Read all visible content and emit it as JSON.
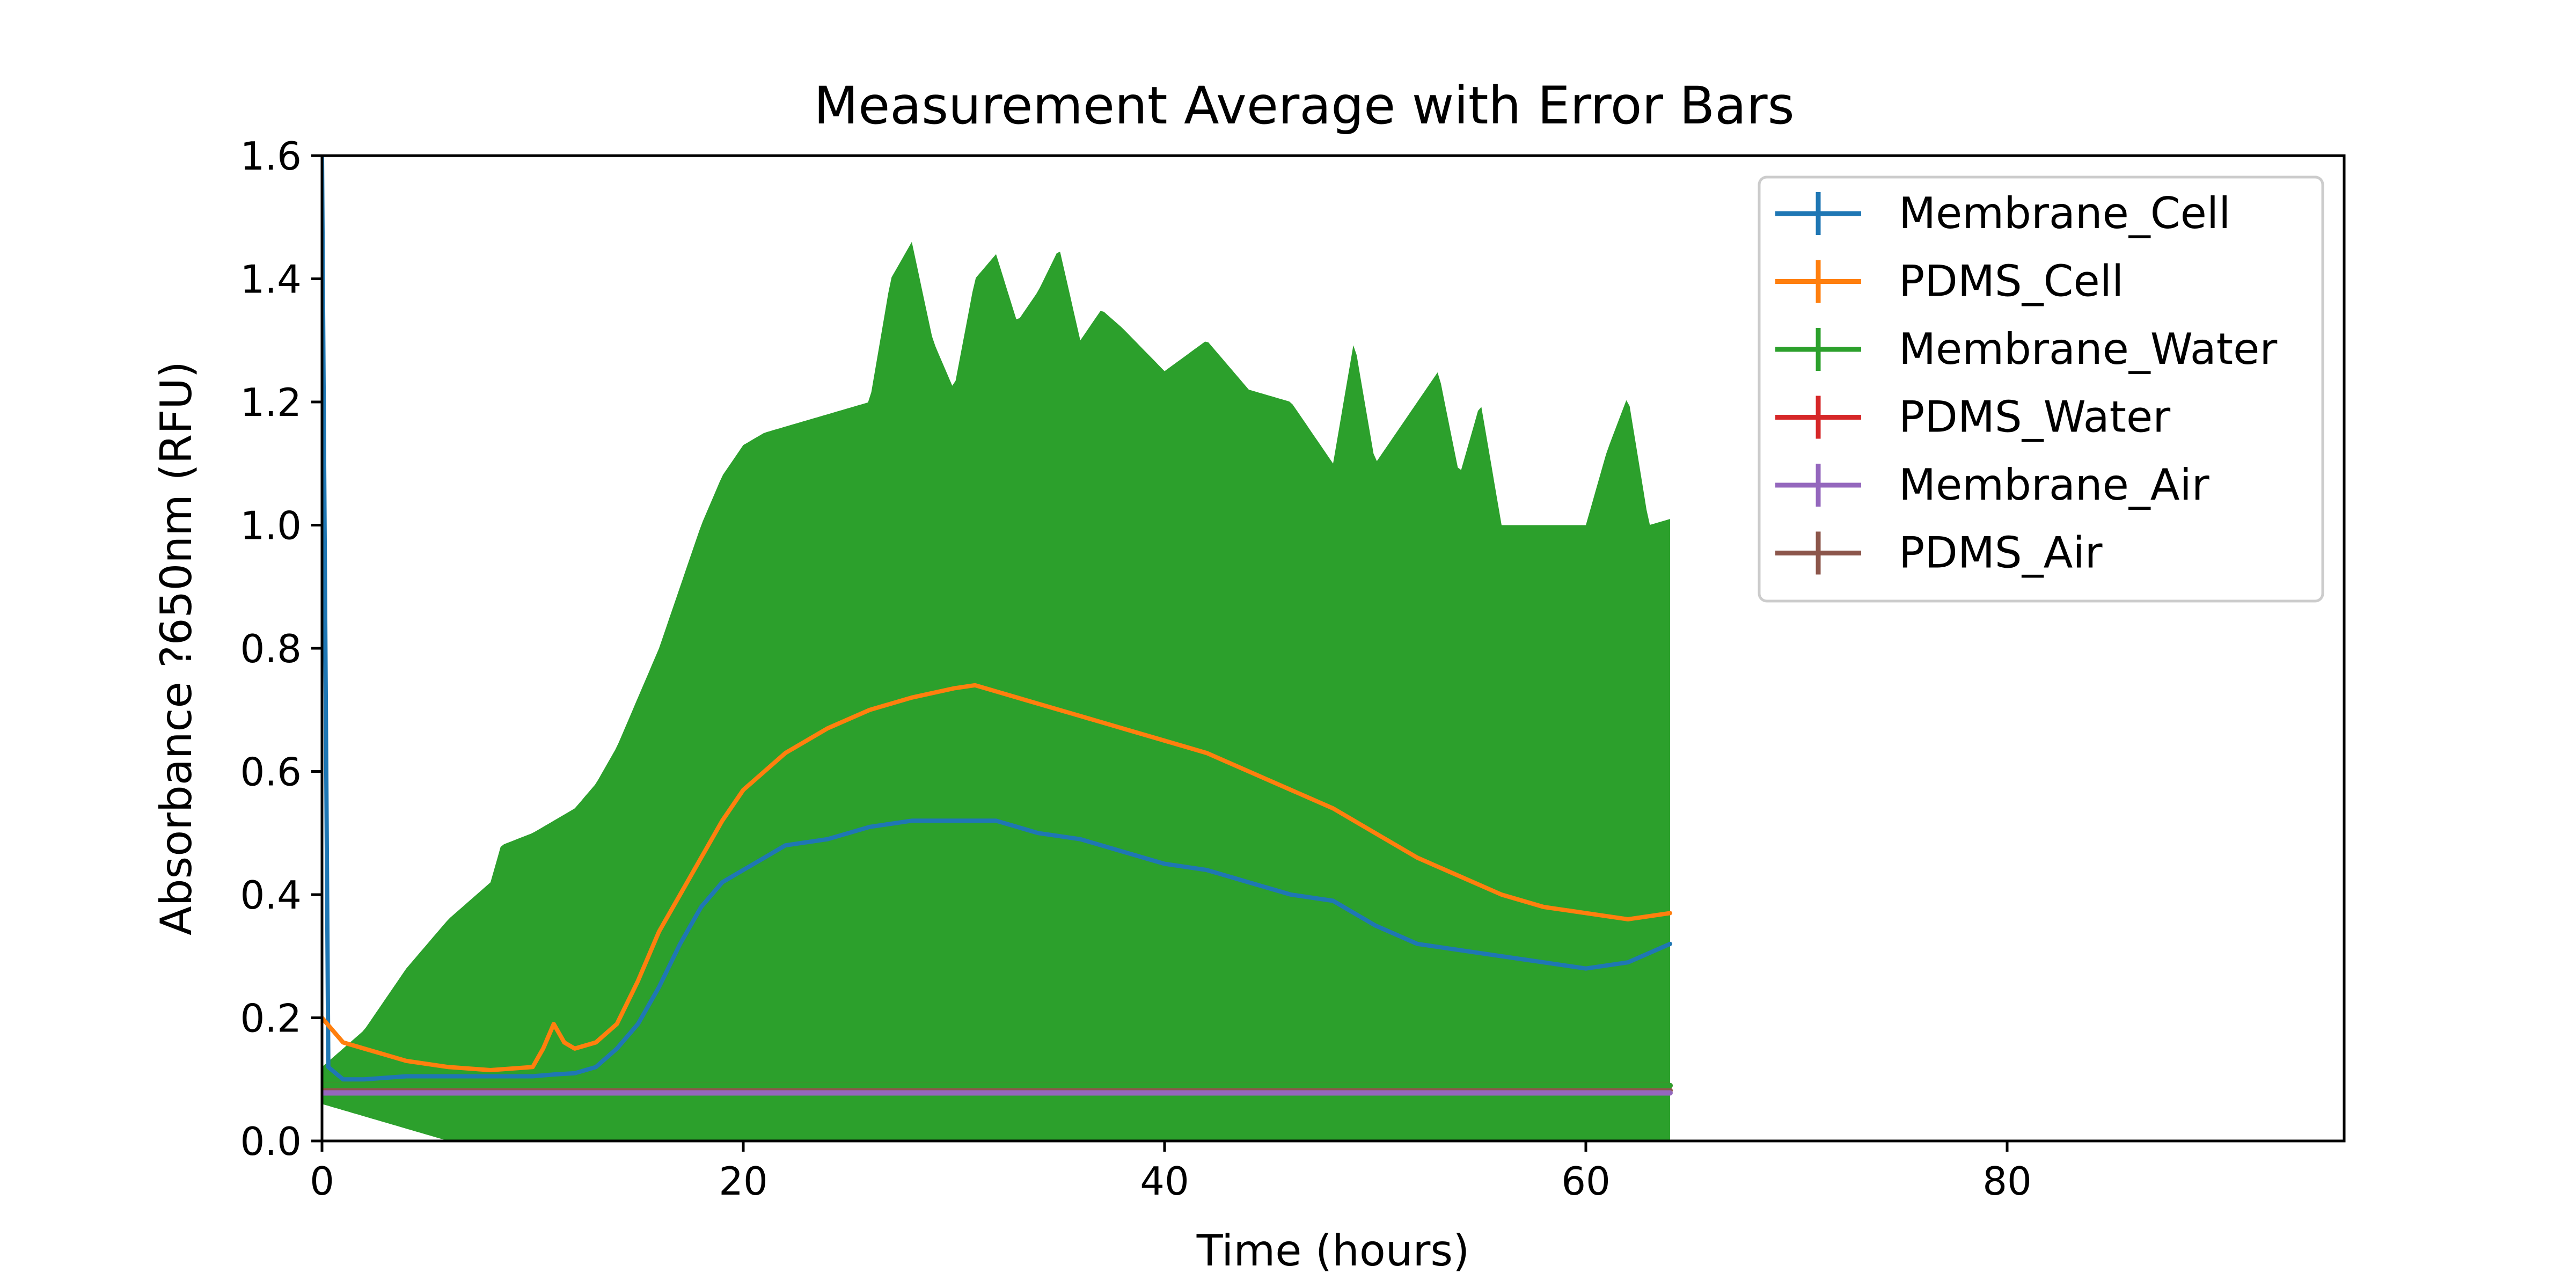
{
  "chart_data": {
    "type": "line",
    "title": "Measurement Average with Error Bars",
    "xlabel": "Time (hours)",
    "ylabel": "Absorbance ?650nm (RFU)",
    "xlim": [
      0,
      96
    ],
    "ylim": [
      0,
      1.6
    ],
    "x_ticks": [
      "0",
      "20",
      "40",
      "60",
      "80"
    ],
    "y_ticks": [
      "0.0",
      "0.2",
      "0.4",
      "0.6",
      "0.8",
      "1.0",
      "1.2",
      "1.4",
      "1.6"
    ],
    "legend_position": "top-right",
    "grid": false,
    "error_bars": true,
    "series": [
      {
        "name": "Membrane_Cell",
        "color": "#1f77b4",
        "x": [
          0,
          0.3,
          1,
          2,
          4,
          6,
          8,
          10,
          11,
          12,
          13,
          14,
          15,
          16,
          17,
          18,
          19,
          20,
          21,
          22,
          24,
          26,
          28,
          30,
          32,
          34,
          36,
          38,
          40,
          42,
          44,
          46,
          48,
          50,
          52,
          54,
          56,
          58,
          60,
          62,
          64
        ],
        "y": [
          1.6,
          0.12,
          0.1,
          0.1,
          0.105,
          0.105,
          0.105,
          0.105,
          0.108,
          0.11,
          0.12,
          0.15,
          0.19,
          0.25,
          0.32,
          0.38,
          0.42,
          0.44,
          0.46,
          0.48,
          0.49,
          0.51,
          0.52,
          0.52,
          0.52,
          0.5,
          0.49,
          0.47,
          0.45,
          0.44,
          0.42,
          0.4,
          0.39,
          0.35,
          0.32,
          0.31,
          0.3,
          0.29,
          0.28,
          0.29,
          0.32
        ]
      },
      {
        "name": "PDMS_Cell",
        "color": "#ff7f0e",
        "x": [
          0,
          0.5,
          1,
          2,
          3,
          4,
          6,
          8,
          10,
          10.5,
          11,
          11.5,
          12,
          13,
          14,
          15,
          16,
          17,
          18,
          19,
          20,
          22,
          24,
          26,
          28,
          30,
          31,
          32,
          34,
          36,
          38,
          40,
          42,
          44,
          46,
          48,
          50,
          52,
          54,
          56,
          58,
          60,
          62,
          64
        ],
        "y": [
          0.2,
          0.18,
          0.16,
          0.15,
          0.14,
          0.13,
          0.12,
          0.115,
          0.12,
          0.15,
          0.19,
          0.16,
          0.15,
          0.16,
          0.19,
          0.26,
          0.34,
          0.4,
          0.46,
          0.52,
          0.57,
          0.63,
          0.67,
          0.7,
          0.72,
          0.735,
          0.74,
          0.73,
          0.71,
          0.69,
          0.67,
          0.65,
          0.63,
          0.6,
          0.57,
          0.54,
          0.5,
          0.46,
          0.43,
          0.4,
          0.38,
          0.37,
          0.36,
          0.37
        ]
      },
      {
        "name": "Membrane_Water",
        "color": "#2ca02c",
        "x": [
          0,
          64
        ],
        "y": [
          0.09,
          0.09
        ],
        "error_upper_envelope": {
          "x": [
            0,
            2,
            4,
            6,
            8,
            8.5,
            10,
            12,
            13,
            14,
            15,
            16,
            17,
            18,
            19,
            20,
            21,
            22,
            24,
            26,
            27,
            28,
            29,
            30,
            31,
            32,
            33,
            34,
            35,
            36,
            37,
            38,
            40,
            42,
            44,
            46,
            48,
            49,
            50,
            52,
            53,
            54,
            55,
            56,
            58,
            60,
            61,
            62,
            63,
            64
          ],
          "y": [
            0.12,
            0.18,
            0.28,
            0.36,
            0.42,
            0.48,
            0.5,
            0.54,
            0.58,
            0.64,
            0.72,
            0.8,
            0.9,
            1.0,
            1.08,
            1.13,
            1.15,
            1.16,
            1.18,
            1.2,
            1.4,
            1.46,
            1.3,
            1.22,
            1.4,
            1.44,
            1.33,
            1.38,
            1.45,
            1.3,
            1.35,
            1.32,
            1.25,
            1.3,
            1.22,
            1.2,
            1.1,
            1.3,
            1.1,
            1.2,
            1.25,
            1.08,
            1.2,
            1.0,
            1.0,
            1.0,
            1.12,
            1.21,
            1.0,
            1.01
          ]
        },
        "error_lower_envelope": {
          "x": [
            0,
            2,
            4,
            6,
            64
          ],
          "y": [
            0.06,
            0.04,
            0.02,
            0.0,
            0.0
          ]
        }
      },
      {
        "name": "PDMS_Water",
        "color": "#d62728",
        "x": [
          0,
          64
        ],
        "y": [
          0.09,
          0.09
        ]
      },
      {
        "name": "Membrane_Air",
        "color": "#9467bd",
        "x": [
          0,
          64
        ],
        "y": [
          0.078,
          0.078
        ]
      },
      {
        "name": "PDMS_Air",
        "color": "#8c564b",
        "x": [
          0,
          64
        ],
        "y": [
          0.082,
          0.082
        ]
      }
    ]
  }
}
